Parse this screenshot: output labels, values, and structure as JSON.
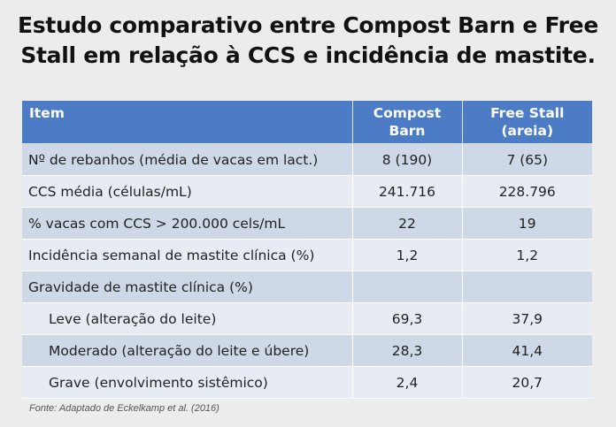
{
  "title": {
    "line1": "Estudo comparativo entre Compost Barn e Free",
    "line2": "Stall em relação à CCS e incidência de mastite."
  },
  "table": {
    "headers": {
      "item": "Item",
      "col1_line1": "Compost",
      "col1_line2": "Barn",
      "col2": "Free Stall (areia)"
    },
    "rows": [
      {
        "item": "Nº de rebanhos (média de vacas em lact.)",
        "compost": "8 (190)",
        "freestall": "7 (65)"
      },
      {
        "item": "CCS média (células/mL)",
        "compost": "241.716",
        "freestall": "228.796"
      },
      {
        "item": "% vacas com CCS > 200.000 cels/mL",
        "compost": "22",
        "freestall": "19"
      },
      {
        "item": "Incidência semanal de mastite clínica (%)",
        "compost": "1,2",
        "freestall": "1,2"
      },
      {
        "item": "Gravidade de mastite clínica (%)",
        "compost": "",
        "freestall": ""
      },
      {
        "item": "Leve (alteração do leite)",
        "compost": "69,3",
        "freestall": "37,9"
      },
      {
        "item": "Moderado (alteração do leite e úbere)",
        "compost": "28,3",
        "freestall": "41,4"
      },
      {
        "item": "Grave (envolvimento sistêmico)",
        "compost": "2,4",
        "freestall": "20,7"
      }
    ]
  },
  "source": "Fonte: Adaptado de Eckelkamp et al. (2016)",
  "colors": {
    "header_bg": "#4d7cc7",
    "row_dark": "#ced8e7",
    "row_light": "#e7ecf4",
    "page_bg": "#ececec"
  }
}
